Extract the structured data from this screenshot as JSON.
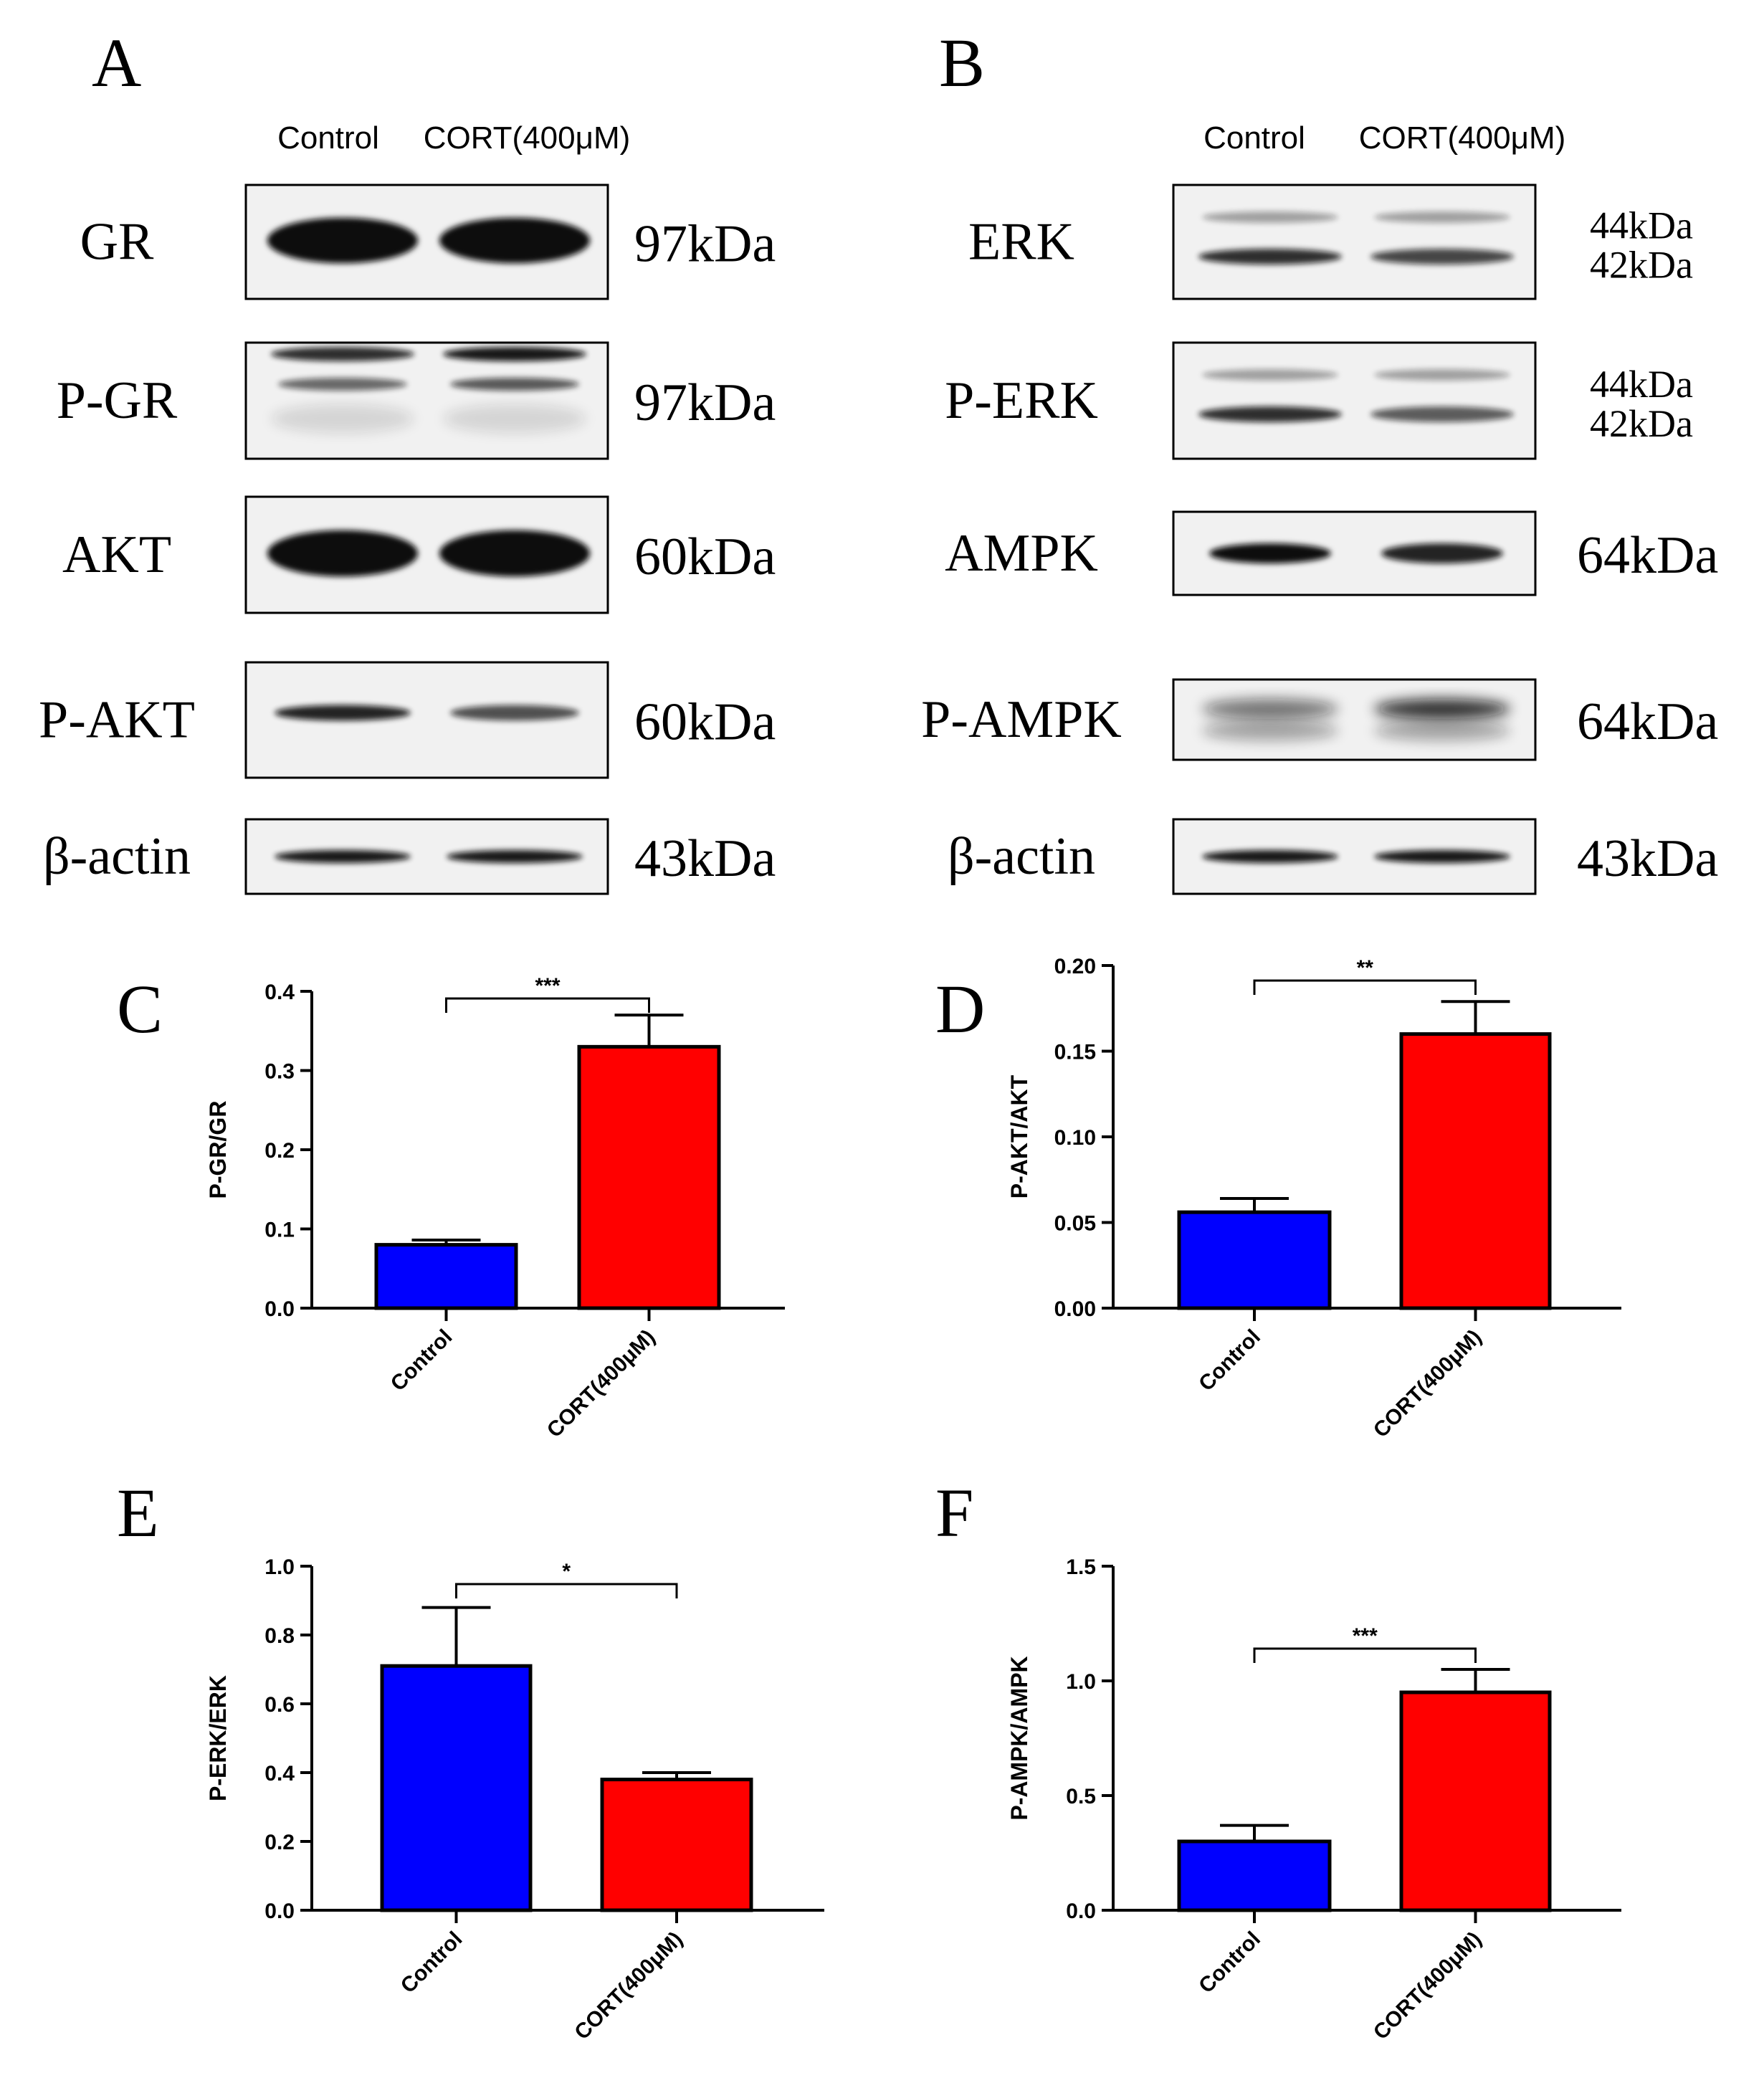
{
  "blot_panels": [
    {
      "label": "A",
      "lane_header": [
        "Control",
        "CORT(400μM)"
      ],
      "rows": [
        {
          "name": "GR",
          "kda": [
            "97kDa"
          ]
        },
        {
          "name": "P-GR",
          "kda": [
            "97kDa"
          ]
        },
        {
          "name": "AKT",
          "kda": [
            "60kDa"
          ]
        },
        {
          "name": "P-AKT",
          "kda": [
            "60kDa"
          ]
        },
        {
          "name": "β-actin",
          "kda": [
            "43kDa"
          ]
        }
      ]
    },
    {
      "label": "B",
      "lane_header": [
        "Control",
        "CORT(400μM)"
      ],
      "rows": [
        {
          "name": "ERK",
          "kda": [
            "44kDa",
            "42kDa"
          ]
        },
        {
          "name": "P-ERK",
          "kda": [
            "44kDa",
            "42kDa"
          ]
        },
        {
          "name": "AMPK",
          "kda": [
            "64kDa"
          ]
        },
        {
          "name": "P-AMPK",
          "kda": [
            "64kDa"
          ]
        },
        {
          "name": "β-actin",
          "kda": [
            "43kDa"
          ]
        }
      ]
    }
  ],
  "colors": {
    "control": "#0000ff",
    "cort": "#ff0000",
    "axis": "#000000"
  },
  "chart_data": [
    {
      "panel": "C",
      "type": "bar",
      "categories": [
        "Control",
        "CORT(400μM)"
      ],
      "values": [
        0.08,
        0.33
      ],
      "errors": [
        0.006,
        0.04
      ],
      "ylabel": "P-GR/GR",
      "ylim": [
        0,
        0.4
      ],
      "yticks": [
        "0.0",
        "0.1",
        "0.2",
        "0.3",
        "0.4"
      ],
      "significance": "***"
    },
    {
      "panel": "D",
      "type": "bar",
      "categories": [
        "Control",
        "CORT(400μM)"
      ],
      "values": [
        0.056,
        0.16
      ],
      "errors": [
        0.008,
        0.019
      ],
      "ylabel": "P-AKT/AKT",
      "ylim": [
        0,
        0.2
      ],
      "yticks": [
        "0.00",
        "0.05",
        "0.10",
        "0.15",
        "0.20"
      ],
      "significance": "**"
    },
    {
      "panel": "E",
      "type": "bar",
      "categories": [
        "Control",
        "CORT(400μM)"
      ],
      "values": [
        0.71,
        0.38
      ],
      "errors": [
        0.17,
        0.02
      ],
      "ylabel": "P-ERK/ERK",
      "ylim": [
        0,
        1.0
      ],
      "yticks": [
        "0.0",
        "0.2",
        "0.4",
        "0.6",
        "0.8",
        "1.0"
      ],
      "significance": "*"
    },
    {
      "panel": "F",
      "type": "bar",
      "categories": [
        "Control",
        "CORT(400μM)"
      ],
      "values": [
        0.3,
        0.95
      ],
      "errors": [
        0.07,
        0.1
      ],
      "ylabel": "P-AMPK/AMPK",
      "ylim": [
        0,
        1.5
      ],
      "yticks": [
        "0.0",
        "0.5",
        "1.0",
        "1.5"
      ],
      "significance": "***"
    }
  ]
}
